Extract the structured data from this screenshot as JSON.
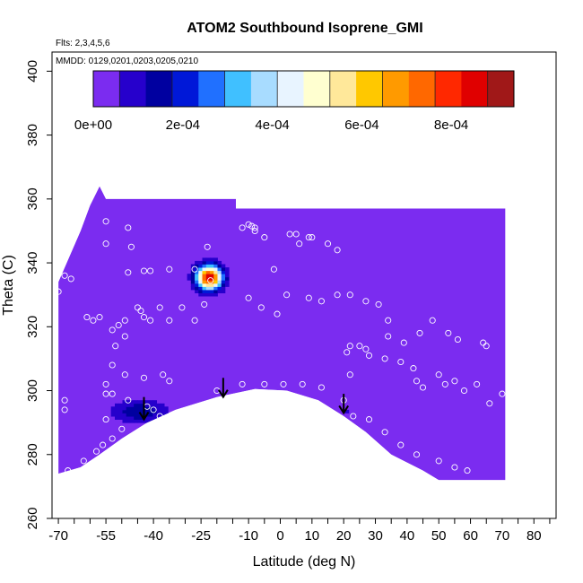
{
  "chart_data": {
    "type": "heatmap",
    "title": "ATOM2 Southbound Isoprene_GMI",
    "annotations": {
      "flights": "Flts: 2,3,4,5,6",
      "dates": "MMDD: 0129,0201,0203,0205,0210"
    },
    "xlabel": "Latitude (deg N)",
    "ylabel": "Theta (C)",
    "xlim": [
      -72,
      87
    ],
    "ylim": [
      260,
      406
    ],
    "xticks": [
      -70,
      -65,
      -60,
      -55,
      -50,
      -45,
      -40,
      -35,
      -30,
      -25,
      -20,
      -15,
      -10,
      -5,
      0,
      5,
      10,
      15,
      20,
      25,
      30,
      35,
      40,
      45,
      50,
      55,
      60,
      65,
      70,
      75,
      80,
      85
    ],
    "xtick_labels": [
      {
        "value": -70,
        "label": "-70"
      },
      {
        "value": -55,
        "label": "-55"
      },
      {
        "value": -40,
        "label": "-40"
      },
      {
        "value": -25,
        "label": "-25"
      },
      {
        "value": -10,
        "label": "-10"
      },
      {
        "value": 0,
        "label": "0"
      },
      {
        "value": 10,
        "label": "10"
      },
      {
        "value": 20,
        "label": "20"
      },
      {
        "value": 30,
        "label": "30"
      },
      {
        "value": 40,
        "label": "40"
      },
      {
        "value": 50,
        "label": "50"
      },
      {
        "value": 60,
        "label": "60"
      },
      {
        "value": 70,
        "label": "70"
      },
      {
        "value": 80,
        "label": "80"
      }
    ],
    "yticks": [
      260,
      280,
      300,
      320,
      340,
      360,
      380,
      400
    ],
    "ytick_labels": [
      "260",
      "280",
      "300",
      "320",
      "340",
      "360",
      "380",
      "400"
    ],
    "colorbar": {
      "min": 0,
      "max": 0.00094,
      "ticks": [
        0,
        0.0002,
        0.0004,
        0.0006,
        0.0008
      ],
      "tick_labels": [
        "0e+00",
        "2e-04",
        "4e-04",
        "6e-04",
        "8e-04"
      ],
      "colors": [
        "#7b2cf0",
        "#2600cc",
        "#0000a0",
        "#0018d8",
        "#2070ff",
        "#40c0ff",
        "#a8dcff",
        "#e8f4ff",
        "#ffffd0",
        "#ffe89a",
        "#ffc800",
        "#ff9a00",
        "#ff6800",
        "#ff2800",
        "#e00000",
        "#a01818"
      ]
    },
    "field": {
      "background_value": 0,
      "top_edge": [
        [
          -70,
          334
        ],
        [
          -63,
          350
        ],
        [
          -60,
          358
        ],
        [
          -58,
          362
        ],
        [
          -57,
          364
        ],
        [
          -55,
          360
        ],
        [
          -14,
          360
        ],
        [
          -14,
          357
        ],
        [
          55,
          357
        ],
        [
          68,
          357
        ],
        [
          71,
          357
        ]
      ],
      "bottom_edge": [
        [
          71,
          272
        ],
        [
          60,
          272
        ],
        [
          50,
          272
        ],
        [
          45,
          275
        ],
        [
          35,
          280
        ],
        [
          27,
          287
        ],
        [
          20,
          292
        ],
        [
          12,
          297
        ],
        [
          2,
          300
        ],
        [
          -8,
          300.5
        ],
        [
          -20,
          298
        ],
        [
          -33,
          294
        ],
        [
          -42,
          290
        ],
        [
          -50,
          285
        ],
        [
          -57,
          280
        ],
        [
          -63,
          276
        ],
        [
          -70,
          274
        ]
      ],
      "hotspots": [
        {
          "lat": -23,
          "theta": 335,
          "peak": 0.00088,
          "spread_lat": 2.8,
          "spread_theta": 2.6
        },
        {
          "lat": -45,
          "theta": 293,
          "peak": 0.00017,
          "spread_lat": 6,
          "spread_theta": 2.5
        },
        {
          "lat": 20,
          "theta": 293,
          "peak": 6e-05,
          "spread_lat": 2,
          "spread_theta": 4
        }
      ]
    },
    "points": [
      [
        -55,
        353
      ],
      [
        -48,
        351
      ],
      [
        -55,
        346
      ],
      [
        -47,
        345
      ],
      [
        -48,
        337
      ],
      [
        -43,
        337.5
      ],
      [
        -41,
        337.5
      ],
      [
        -35,
        338
      ],
      [
        -27,
        338
      ],
      [
        -70,
        331
      ],
      [
        -68,
        336
      ],
      [
        -66,
        335
      ],
      [
        -61,
        323
      ],
      [
        -59,
        322
      ],
      [
        -57,
        323
      ],
      [
        -53,
        319
      ],
      [
        -51,
        320.5
      ],
      [
        -49,
        322
      ],
      [
        -45,
        326
      ],
      [
        -44,
        325
      ],
      [
        -43,
        323
      ],
      [
        -41,
        322
      ],
      [
        -38,
        326
      ],
      [
        -35,
        322
      ],
      [
        -31,
        326
      ],
      [
        -27,
        322
      ],
      [
        -24,
        327
      ],
      [
        -22,
        334.5
      ],
      [
        -23,
        345
      ],
      [
        -12,
        351
      ],
      [
        -10,
        352
      ],
      [
        -9,
        351.5
      ],
      [
        -8,
        351
      ],
      [
        -8,
        350
      ],
      [
        -5,
        348
      ],
      [
        -2,
        338
      ],
      [
        3,
        349
      ],
      [
        5,
        349
      ],
      [
        6,
        346
      ],
      [
        9,
        348
      ],
      [
        10,
        348
      ],
      [
        15,
        346
      ],
      [
        18,
        344
      ],
      [
        -10,
        329
      ],
      [
        -6,
        326
      ],
      [
        -1,
        324
      ],
      [
        2,
        330
      ],
      [
        9,
        329
      ],
      [
        13,
        328
      ],
      [
        18,
        330
      ],
      [
        22,
        330
      ],
      [
        27,
        328
      ],
      [
        31,
        327
      ],
      [
        34,
        322
      ],
      [
        34,
        317
      ],
      [
        39,
        315
      ],
      [
        44,
        318
      ],
      [
        48,
        322
      ],
      [
        53,
        318
      ],
      [
        56,
        316
      ],
      [
        64,
        315
      ],
      [
        65,
        314
      ],
      [
        -52,
        314
      ],
      [
        -49,
        317
      ],
      [
        -53,
        308
      ],
      [
        -49,
        305
      ],
      [
        -43,
        304
      ],
      [
        -37,
        305
      ],
      [
        -35,
        303
      ],
      [
        -68,
        297
      ],
      [
        -68,
        294
      ],
      [
        -55,
        302
      ],
      [
        -55,
        299
      ],
      [
        -53,
        299
      ],
      [
        -48,
        297
      ],
      [
        -42,
        295
      ],
      [
        -38,
        292
      ],
      [
        -40,
        294
      ],
      [
        -55,
        291
      ],
      [
        -50,
        288
      ],
      [
        -53,
        285
      ],
      [
        -56,
        283
      ],
      [
        -58,
        281
      ],
      [
        -62,
        278
      ],
      [
        -67,
        275
      ],
      [
        -20,
        300
      ],
      [
        -12,
        302
      ],
      [
        -5,
        302
      ],
      [
        1,
        302
      ],
      [
        7,
        302
      ],
      [
        13,
        301
      ],
      [
        20,
        297
      ],
      [
        22,
        305
      ],
      [
        21,
        312
      ],
      [
        22,
        314
      ],
      [
        25,
        314
      ],
      [
        27,
        313
      ],
      [
        28,
        311
      ],
      [
        33,
        310
      ],
      [
        38,
        309
      ],
      [
        42,
        307
      ],
      [
        43,
        303
      ],
      [
        45,
        301
      ],
      [
        50,
        305
      ],
      [
        52,
        302
      ],
      [
        55,
        303
      ],
      [
        58,
        300
      ],
      [
        62,
        302
      ],
      [
        66,
        296
      ],
      [
        70,
        299
      ],
      [
        23,
        292
      ],
      [
        28,
        291
      ],
      [
        33,
        287
      ],
      [
        38,
        283
      ],
      [
        43,
        280
      ],
      [
        50,
        278
      ],
      [
        55,
        276
      ],
      [
        59,
        275
      ]
    ],
    "arrows": [
      {
        "lat": -43,
        "theta_from": 298,
        "theta_to": 291
      },
      {
        "lat": -18,
        "theta_from": 304,
        "theta_to": 298
      },
      {
        "lat": 20,
        "theta_from": 299,
        "theta_to": 293
      }
    ]
  }
}
